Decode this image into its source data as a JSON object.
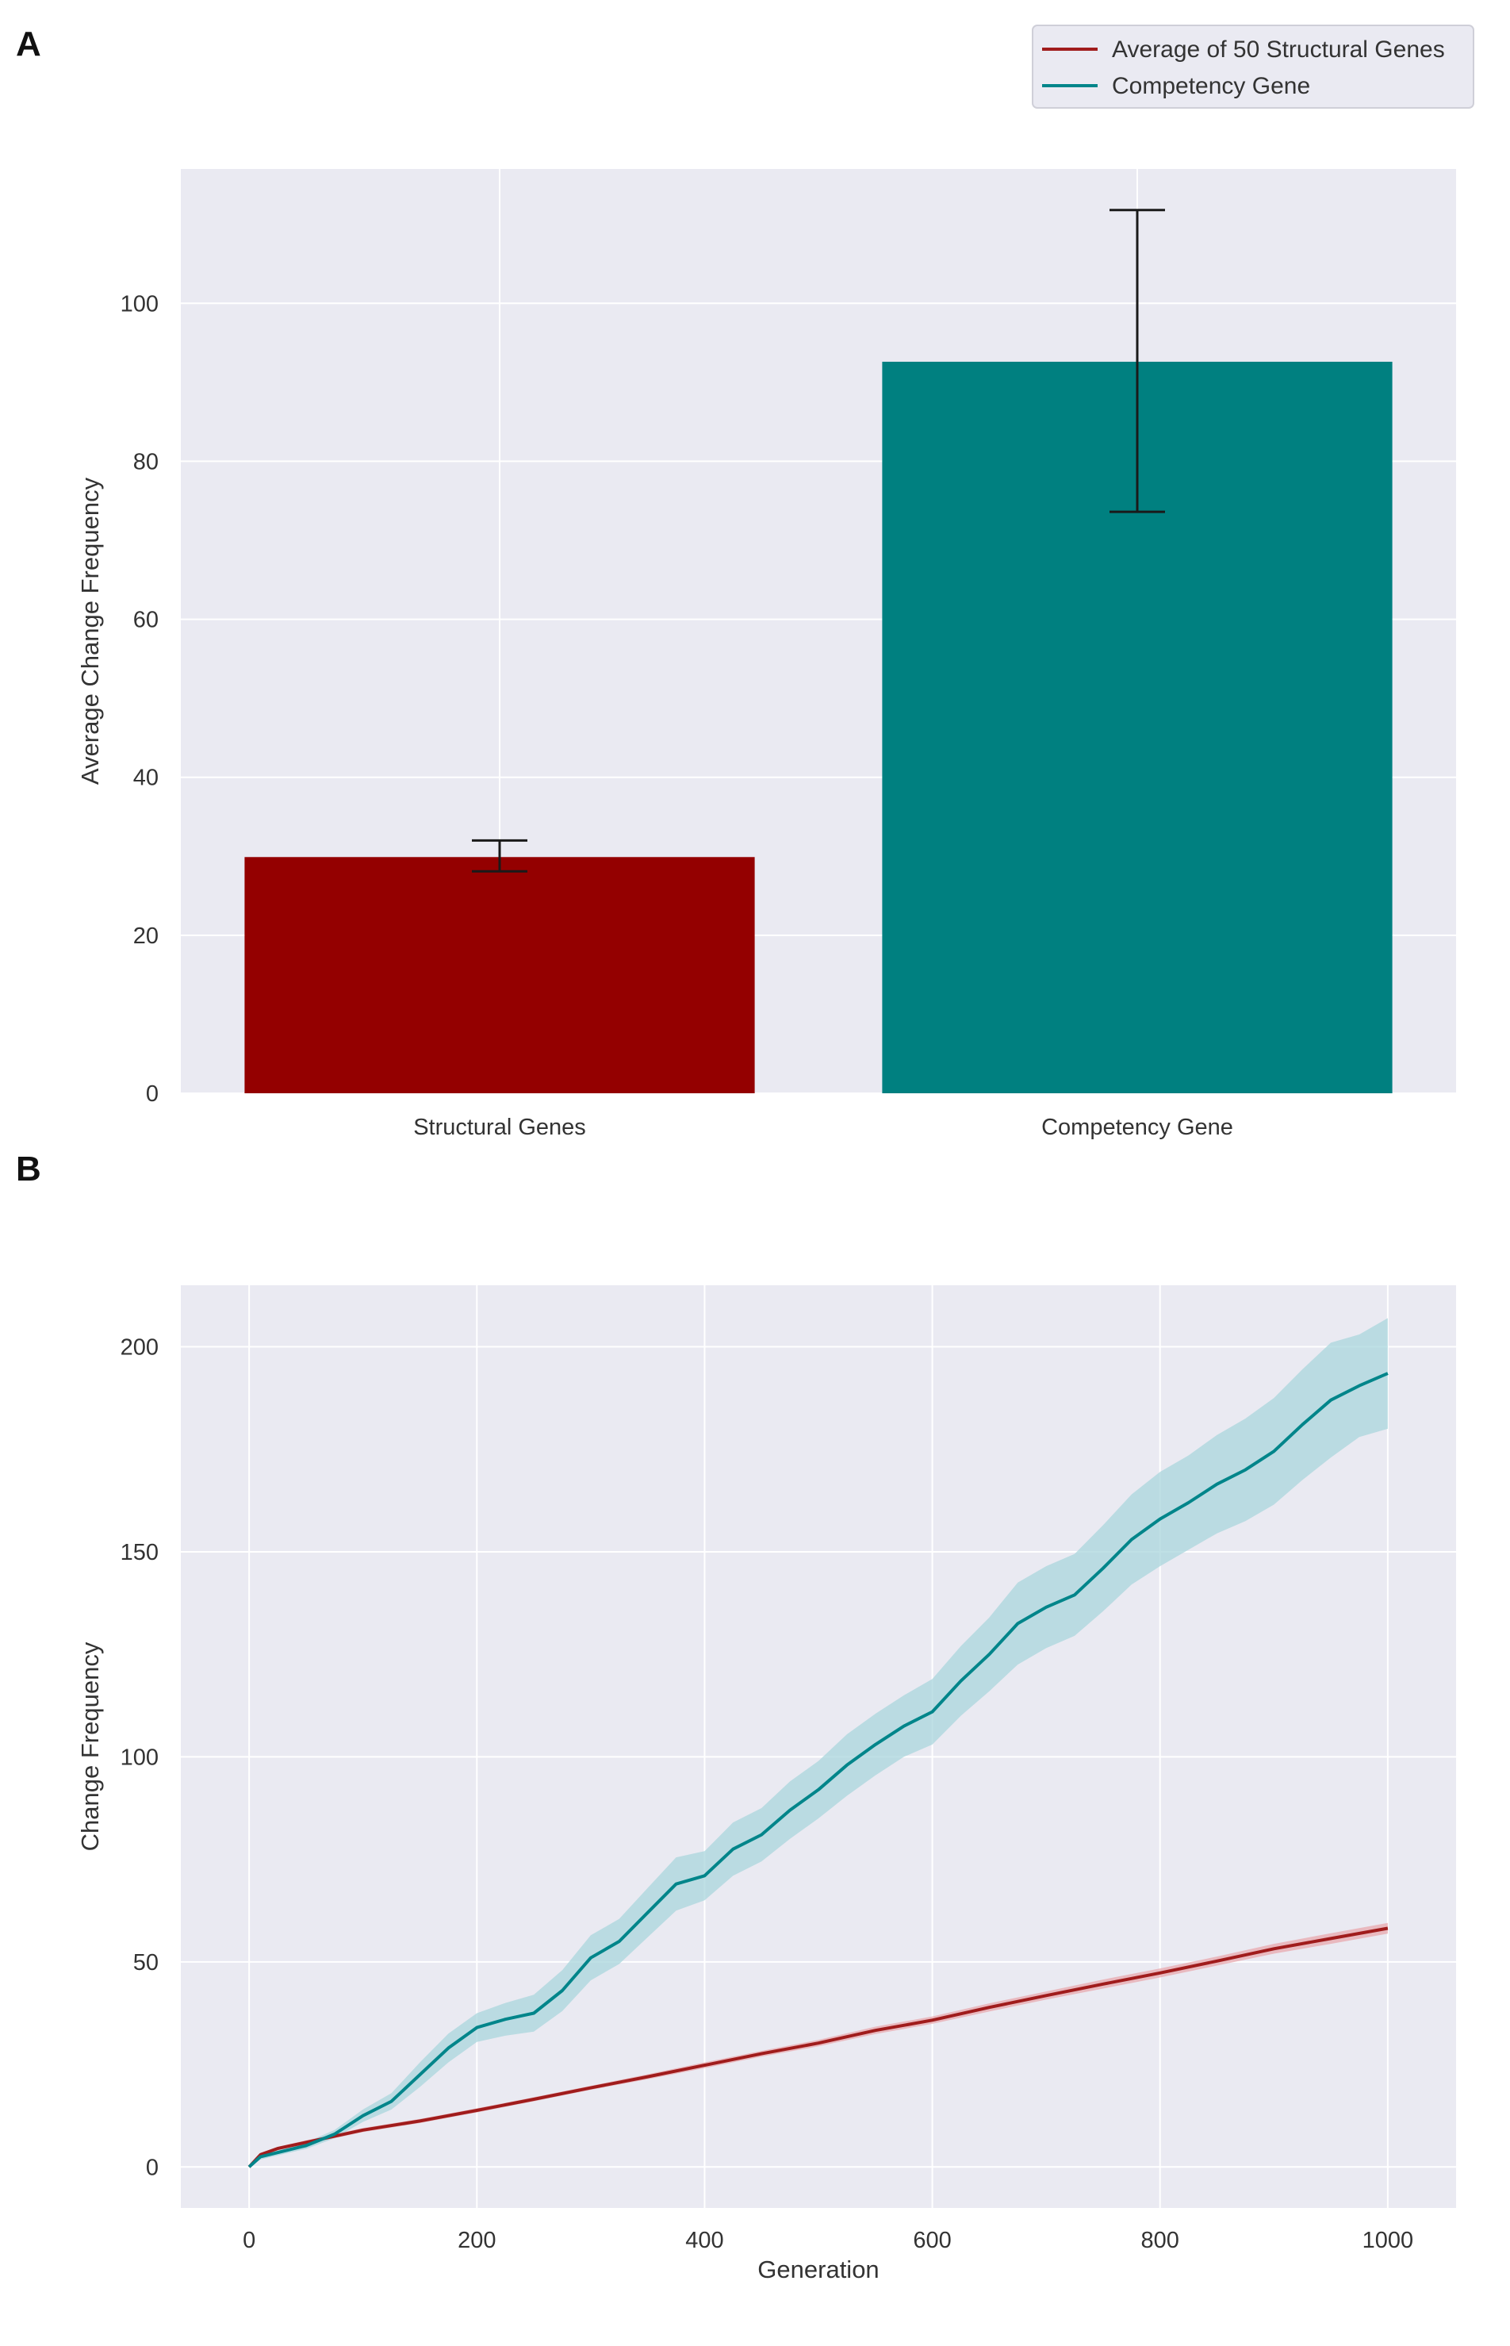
{
  "figure": {
    "panel_labels": [
      "A",
      "B"
    ],
    "legend": {
      "entries": [
        {
          "label": "Average of 50 Structural Genes",
          "color": "#a01c1c"
        },
        {
          "label": "Competency Gene",
          "color": "#00858a"
        }
      ]
    }
  },
  "chart_data": [
    {
      "type": "bar",
      "panel": "A",
      "title": "",
      "xlabel": "",
      "ylabel": "Average Change Frequency",
      "categories": [
        "Structural Genes",
        "Competency Gene"
      ],
      "values": [
        29.9,
        92.6
      ],
      "error_low": [
        28.1,
        73.6
      ],
      "error_high": [
        32.0,
        111.8
      ],
      "colors": [
        "#940000",
        "#008080"
      ],
      "ylim": [
        0,
        117
      ],
      "yticks": [
        0,
        20,
        40,
        60,
        80,
        100
      ],
      "grid": true
    },
    {
      "type": "line",
      "panel": "B",
      "title": "",
      "xlabel": "Generation",
      "ylabel": "Change Frequency",
      "xlim": [
        -60,
        1060
      ],
      "ylim": [
        -10,
        215
      ],
      "xticks": [
        0,
        200,
        400,
        600,
        800,
        1000
      ],
      "yticks": [
        0,
        50,
        100,
        150,
        200
      ],
      "grid": true,
      "series": [
        {
          "name": "Average of 50 Structural Genes",
          "color": "#a01c1c",
          "band_color": "#e8a8ae",
          "x": [
            0,
            10,
            25,
            50,
            100,
            150,
            200,
            250,
            300,
            350,
            400,
            450,
            500,
            550,
            600,
            650,
            700,
            750,
            800,
            850,
            900,
            950,
            1000
          ],
          "y": [
            0,
            3,
            4.5,
            6,
            9,
            11.2,
            13.8,
            16.5,
            19.3,
            22,
            24.8,
            27.6,
            30.2,
            33.3,
            35.8,
            38.9,
            41.8,
            44.6,
            47.3,
            50.2,
            53.2,
            55.7,
            58.2
          ],
          "lower": [
            0,
            2.7,
            4.1,
            5.5,
            8.5,
            10.7,
            13.3,
            16,
            18.8,
            21.4,
            24.1,
            26.9,
            29.4,
            32.4,
            34.9,
            37.9,
            40.8,
            43.5,
            46.2,
            49.1,
            52,
            54.4,
            56.9
          ],
          "upper": [
            0,
            3.3,
            4.9,
            6.5,
            9.5,
            11.7,
            14.3,
            17,
            19.8,
            22.6,
            25.5,
            28.3,
            31,
            34.2,
            36.7,
            39.9,
            42.8,
            45.7,
            48.4,
            51.3,
            54.4,
            57,
            59.5
          ]
        },
        {
          "name": "Competency Gene",
          "color": "#00858a",
          "band_color": "#a9d6dc",
          "x": [
            0,
            10,
            25,
            50,
            75,
            100,
            125,
            150,
            175,
            200,
            225,
            250,
            275,
            300,
            325,
            350,
            375,
            400,
            425,
            450,
            475,
            500,
            525,
            550,
            575,
            600,
            625,
            650,
            675,
            700,
            725,
            750,
            775,
            800,
            825,
            850,
            875,
            900,
            925,
            950,
            975,
            1000
          ],
          "y": [
            0,
            2.5,
            3.5,
            5.2,
            8,
            12.5,
            16,
            22.5,
            29,
            34,
            36,
            37.5,
            43,
            51,
            55,
            62,
            69,
            71,
            77.5,
            81,
            87,
            92,
            98,
            103,
            107.5,
            111,
            118.5,
            125,
            132.5,
            136.5,
            139.5,
            146,
            153,
            158,
            162,
            166.5,
            170,
            174.5,
            181,
            187,
            190.5,
            193.5
          ],
          "lower": [
            0,
            1.8,
            2.8,
            4.4,
            7,
            11,
            14,
            19.5,
            25.5,
            30.5,
            32,
            33,
            38,
            45.5,
            49.5,
            56,
            62.5,
            65,
            71,
            74.5,
            80,
            85,
            90.5,
            95.5,
            100,
            103,
            110,
            116,
            122.5,
            126.5,
            129.5,
            135.5,
            142,
            146.5,
            150.5,
            154.5,
            157.5,
            161.5,
            167.5,
            173,
            178,
            180
          ],
          "upper": [
            0,
            3.2,
            4.2,
            6,
            9,
            14,
            18,
            25.5,
            32.5,
            37.5,
            40,
            42,
            48,
            56.5,
            60.5,
            68,
            75.5,
            77,
            84,
            87.5,
            94,
            99,
            105.5,
            110.5,
            115,
            119,
            127,
            134,
            142.5,
            146.5,
            149.5,
            156.5,
            164,
            169.5,
            173.5,
            178.5,
            182.5,
            187.5,
            194.5,
            201,
            203,
            207
          ]
        }
      ]
    }
  ]
}
